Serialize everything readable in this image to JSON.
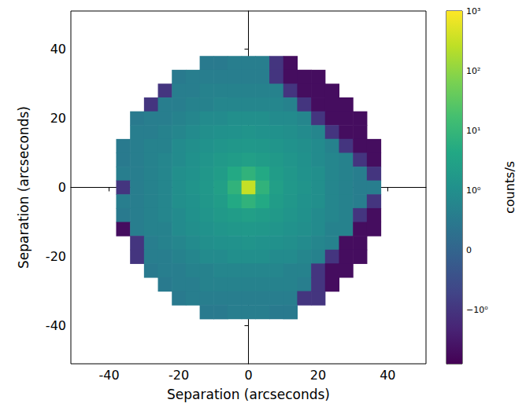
{
  "chart_data": {
    "type": "heatmap",
    "x_label": "Separation (arcseconds)",
    "y_label": "Separation (arcseconds)",
    "xlim": [
      -51,
      51
    ],
    "ylim": [
      -51,
      51
    ],
    "xticks": [
      -40,
      -20,
      0,
      20,
      40
    ],
    "yticks": [
      -40,
      -20,
      0,
      20,
      40
    ],
    "grid": false,
    "x": [
      -36,
      -32,
      -28,
      -24,
      -20,
      -16,
      -12,
      -8,
      -4,
      0,
      4,
      8,
      12,
      16,
      20,
      24,
      28,
      32,
      36
    ],
    "y": [
      36,
      32,
      28,
      24,
      20,
      16,
      12,
      8,
      4,
      0,
      -4,
      -8,
      -12,
      -16,
      -20,
      -24,
      -28,
      -32,
      -36
    ],
    "values": [
      [
        null,
        null,
        null,
        null,
        null,
        null,
        0.5,
        0.5,
        0.6,
        0.6,
        0.6,
        -1,
        -5,
        null,
        null,
        null,
        null,
        null,
        null
      ],
      [
        null,
        null,
        null,
        null,
        0.5,
        0.6,
        0.6,
        0.6,
        0.6,
        0.6,
        0.6,
        -1,
        -5,
        -5,
        -5,
        null,
        null,
        null,
        null
      ],
      [
        null,
        null,
        null,
        -1,
        0.6,
        0.6,
        0.7,
        0.7,
        0.7,
        0.7,
        0.7,
        0.7,
        -1,
        -5,
        -5,
        -5,
        null,
        null,
        null
      ],
      [
        null,
        null,
        -1,
        0.6,
        0.6,
        0.7,
        0.7,
        0.8,
        0.8,
        0.8,
        0.8,
        0.8,
        0.7,
        -1,
        -5,
        -5,
        -5,
        null,
        null
      ],
      [
        null,
        0.5,
        0.6,
        0.6,
        0.7,
        0.8,
        0.9,
        0.9,
        1.0,
        1.0,
        1.0,
        0.9,
        0.9,
        0.8,
        -1,
        -5,
        -5,
        -5,
        null
      ],
      [
        null,
        0.6,
        0.6,
        0.7,
        0.8,
        0.9,
        1.0,
        1.1,
        1.2,
        1.3,
        1.2,
        1.1,
        1.0,
        0.9,
        0.8,
        -1,
        -5,
        -5,
        null
      ],
      [
        0.5,
        0.6,
        0.7,
        0.7,
        0.9,
        1.0,
        1.2,
        1.4,
        1.6,
        1.7,
        1.6,
        1.4,
        1.2,
        1.0,
        0.9,
        0.7,
        -1,
        -5,
        -5
      ],
      [
        0.5,
        0.6,
        0.7,
        0.8,
        0.9,
        1.1,
        1.4,
        1.8,
        2.2,
        2.5,
        2.2,
        1.8,
        1.4,
        1.1,
        0.9,
        0.8,
        0.7,
        -1,
        -5
      ],
      [
        0.6,
        0.6,
        0.7,
        0.8,
        1.0,
        1.2,
        1.6,
        2.2,
        4.5,
        8,
        4.5,
        2.2,
        1.6,
        1.2,
        1.0,
        0.8,
        0.7,
        0.6,
        -1
      ],
      [
        -1,
        0.6,
        0.7,
        0.8,
        1.0,
        1.3,
        1.7,
        2.5,
        8,
        300,
        8,
        2.5,
        1.7,
        1.3,
        1.0,
        0.8,
        0.7,
        0.6,
        0.6
      ],
      [
        0.6,
        0.6,
        0.7,
        0.8,
        1.0,
        1.2,
        1.6,
        2.2,
        4.5,
        8,
        4.5,
        2.2,
        1.6,
        1.2,
        1.0,
        0.8,
        0.7,
        0.6,
        -1
      ],
      [
        0.5,
        0.6,
        0.7,
        0.8,
        0.9,
        1.1,
        1.4,
        1.8,
        2.2,
        2.5,
        2.2,
        1.8,
        1.4,
        1.1,
        0.9,
        0.8,
        0.7,
        -1,
        -5
      ],
      [
        -5,
        0.6,
        0.7,
        0.7,
        0.9,
        1.0,
        1.2,
        1.4,
        1.6,
        1.7,
        1.6,
        1.4,
        1.2,
        1.0,
        0.9,
        0.7,
        0.7,
        -5,
        -5
      ],
      [
        null,
        -1,
        0.6,
        0.7,
        0.8,
        0.9,
        1.0,
        1.1,
        1.2,
        1.3,
        1.2,
        1.1,
        1.0,
        0.9,
        0.8,
        0.7,
        -5,
        -5,
        null
      ],
      [
        null,
        -1,
        0.6,
        0.6,
        0.7,
        0.8,
        0.9,
        0.9,
        1.0,
        1.0,
        1.0,
        0.9,
        0.9,
        0.8,
        0.7,
        -1,
        -5,
        -5,
        null
      ],
      [
        null,
        null,
        0.5,
        0.6,
        0.6,
        0.7,
        0.7,
        0.8,
        0.8,
        0.8,
        0.8,
        0.8,
        0.7,
        0.7,
        -1,
        -5,
        -5,
        null,
        null
      ],
      [
        null,
        null,
        null,
        0.5,
        0.6,
        0.6,
        0.7,
        0.7,
        0.7,
        0.7,
        0.7,
        0.7,
        0.7,
        0.6,
        -1,
        -5,
        null,
        null,
        null
      ],
      [
        null,
        null,
        null,
        null,
        0.5,
        0.6,
        0.6,
        0.6,
        0.6,
        0.6,
        0.6,
        0.6,
        0.6,
        -1,
        -1,
        null,
        null,
        null,
        null
      ],
      [
        null,
        null,
        null,
        null,
        null,
        null,
        0.5,
        0.5,
        0.6,
        0.6,
        0.6,
        0.5,
        0.5,
        null,
        null,
        null,
        null,
        null,
        null
      ]
    ],
    "colorbar": {
      "label": "counts/s",
      "scale": "symlog",
      "range": [
        -8,
        1000
      ],
      "ticks": [
        {
          "value": 1000,
          "label": "10³"
        },
        {
          "value": 100,
          "label": "10²"
        },
        {
          "value": 10,
          "label": "10¹"
        },
        {
          "value": 1,
          "label": "10⁰"
        },
        0,
        {
          "value": -1,
          "label": "−10⁰"
        }
      ]
    }
  }
}
